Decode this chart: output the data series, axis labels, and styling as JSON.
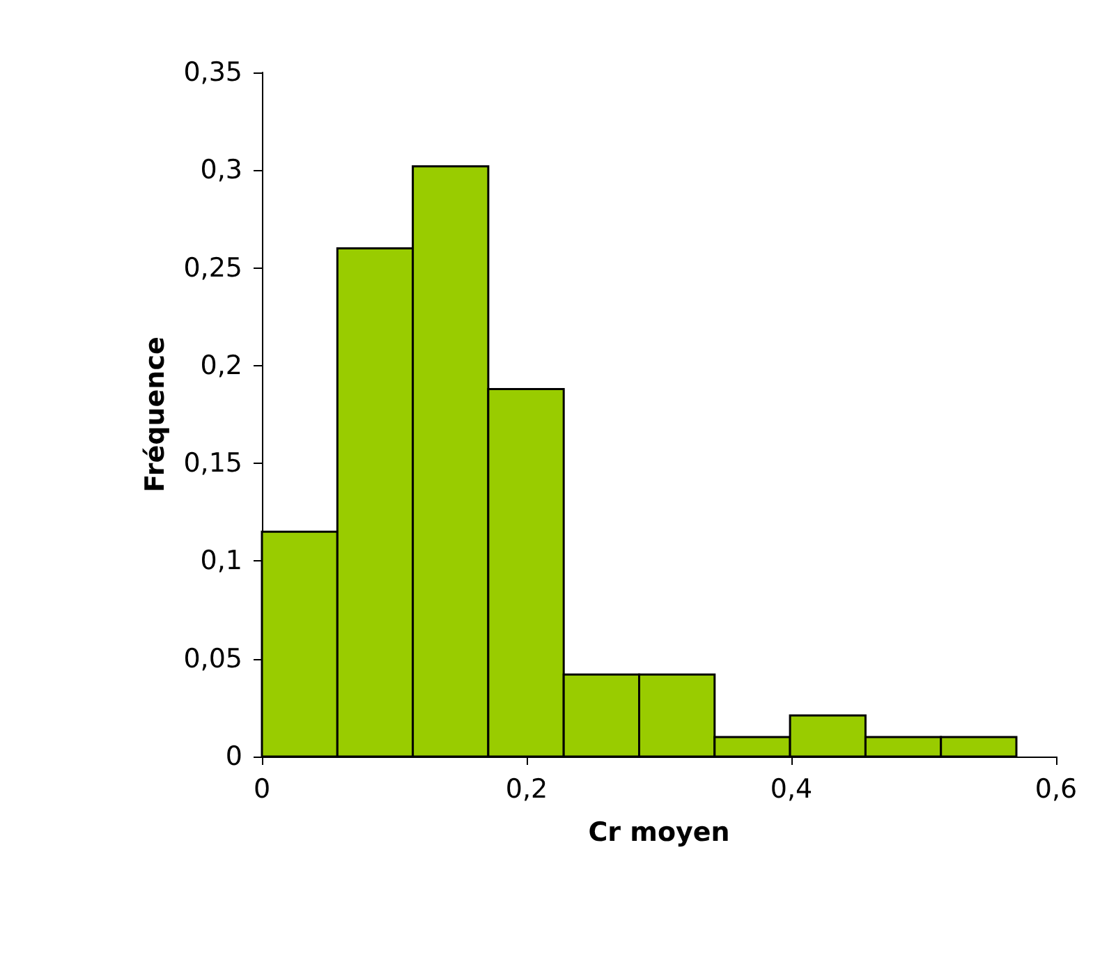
{
  "chart_data": {
    "type": "histogram",
    "xlabel": "Cr moyen",
    "ylabel": "Fréquence",
    "bins": [
      0,
      0.057,
      0.114,
      0.171,
      0.228,
      0.285,
      0.342,
      0.399,
      0.456,
      0.513,
      0.57
    ],
    "values": [
      0.115,
      0.26,
      0.302,
      0.188,
      0.042,
      0.042,
      0.01,
      0.021,
      0.01,
      0.01
    ],
    "color": "#99cc00",
    "xlim": [
      0,
      0.6
    ],
    "xticks": [
      0,
      {
        "value": 0.2,
        "label": "0,2"
      },
      {
        "value": 0.4,
        "label": "0,4"
      },
      {
        "value": 0.6,
        "label": "0,6"
      }
    ],
    "ylim": [
      0,
      0.35
    ],
    "yticks": [
      0,
      {
        "value": 0.05,
        "label": "0,05"
      },
      {
        "value": 0.1,
        "label": "0,1"
      },
      {
        "value": 0.15,
        "label": "0,15"
      },
      {
        "value": 0.2,
        "label": "0,2"
      },
      {
        "value": 0.25,
        "label": "0,25"
      },
      {
        "value": 0.3,
        "label": "0,3"
      },
      {
        "value": 0.35,
        "label": "0,35"
      }
    ],
    "grid": false
  }
}
